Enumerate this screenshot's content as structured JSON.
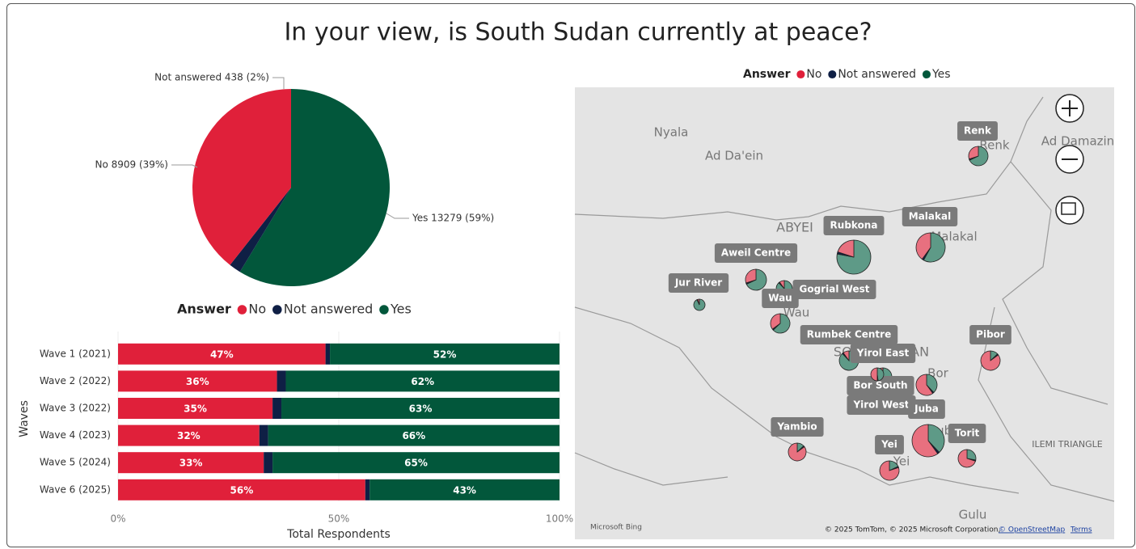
{
  "page_title": "In your view, is South Sudan currently at peace?",
  "chart_data": [
    {
      "type": "pie",
      "categories": [
        "No",
        "Not answered",
        "Yes"
      ],
      "values": [
        8909,
        438,
        13279
      ],
      "value_labels": [
        "No 8909 (39%)",
        "Not answered 438 (2%)",
        "Yes 13279 (59%)"
      ],
      "colors": [
        "#e0203a",
        "#0f1f45",
        "#02573b"
      ],
      "legend_title": "Answer"
    },
    {
      "type": "bar",
      "orientation": "horizontal",
      "stacked": true,
      "categories": [
        "Wave 1 (2021)",
        "Wave 2 (2022)",
        "Wave 3 (2022)",
        "Wave 4 (2023)",
        "Wave 5 (2024)",
        "Wave 6 (2025)"
      ],
      "series": [
        {
          "name": "No",
          "color": "#e0203a",
          "values": [
            47,
            36,
            35,
            32,
            33,
            56
          ],
          "value_labels": [
            "47%",
            "36%",
            "35%",
            "32%",
            "33%",
            "56%"
          ]
        },
        {
          "name": "Not answered",
          "color": "#0f1f45",
          "values": [
            1,
            2,
            2,
            2,
            2,
            1
          ]
        },
        {
          "name": "Yes",
          "color": "#02573b",
          "values": [
            52,
            62,
            63,
            66,
            65,
            43
          ],
          "value_labels": [
            "52%",
            "62%",
            "63%",
            "66%",
            "65%",
            "43%"
          ]
        }
      ],
      "xlim": [
        0,
        100
      ],
      "xticks": [
        {
          "value": 0,
          "label": "0%"
        },
        {
          "value": 50,
          "label": "50%"
        },
        {
          "value": 100,
          "label": "100%"
        }
      ],
      "xlabel": "Total Respondents",
      "ylabel": "Waves",
      "legend_title": "Answer"
    },
    {
      "type": "pie-map",
      "legend_title": "Answer",
      "series_names": [
        "No",
        "Not answered",
        "Yes"
      ],
      "colors": [
        "#e8707f",
        "#0f1f45",
        "#5e9a87"
      ],
      "locations": [
        {
          "name": "Renk",
          "values": [
            30,
            2,
            68
          ]
        },
        {
          "name": "Malakal",
          "values": [
            40,
            2,
            58
          ]
        },
        {
          "name": "Rubkona",
          "values": [
            20,
            2,
            78
          ]
        },
        {
          "name": "Aweil Centre",
          "values": [
            30,
            2,
            68
          ]
        },
        {
          "name": "Gogrial West",
          "values": [
            10,
            2,
            88
          ]
        },
        {
          "name": "Jur River",
          "values": [
            5,
            2,
            93
          ]
        },
        {
          "name": "Wau",
          "values": [
            35,
            2,
            63
          ]
        },
        {
          "name": "Rumbek Centre",
          "values": [
            10,
            2,
            88
          ]
        },
        {
          "name": "Yirol East",
          "values": [
            30,
            2,
            68
          ]
        },
        {
          "name": "Bor South",
          "values": [
            60,
            2,
            38
          ]
        },
        {
          "name": "Yirol West",
          "values": [
            50,
            2,
            48
          ]
        },
        {
          "name": "Pibor",
          "values": [
            85,
            2,
            13
          ]
        },
        {
          "name": "Juba",
          "values": [
            60,
            2,
            38
          ]
        },
        {
          "name": "Torit",
          "values": [
            70,
            2,
            28
          ]
        },
        {
          "name": "Yei",
          "values": [
            80,
            2,
            18
          ]
        },
        {
          "name": "Yambio",
          "values": [
            85,
            2,
            13
          ]
        }
      ],
      "place_names": [
        "Nyala",
        "Ad Da'ein",
        "Ad Damazin",
        "ABYEI",
        "SOUTH SUDAN",
        "ILEMI TRIANGLE",
        "Gulu",
        "Renk",
        "Malakal",
        "Wau",
        "Bor",
        "Juba",
        "Yei"
      ],
      "attribution": "© 2025 TomTom, © 2025 Microsoft Corporation,",
      "osm": "© OpenStreetMap",
      "terms": "Terms",
      "logo": "Microsoft Bing"
    }
  ]
}
